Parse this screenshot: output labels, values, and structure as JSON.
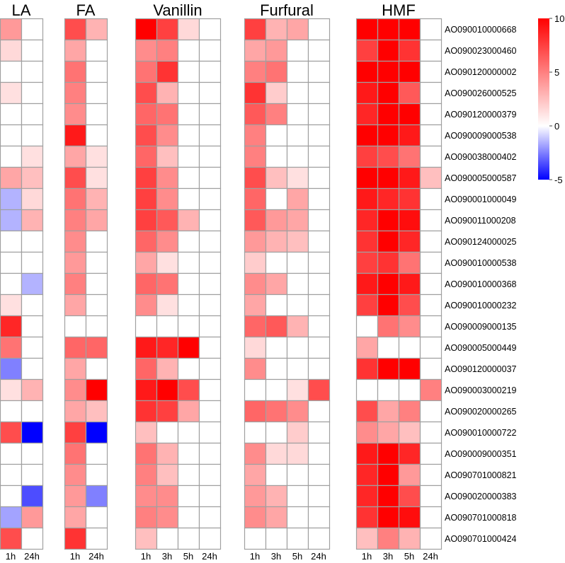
{
  "chart_data": {
    "type": "heatmap",
    "title": "",
    "color_scale": {
      "min": -5,
      "mid": 0,
      "max": 10,
      "low_color": "#0000FF",
      "mid_color": "#FFFFFF",
      "high_color": "#FF0000",
      "ticks": [
        "10",
        "5",
        "0",
        "-5"
      ]
    },
    "groups": [
      {
        "name": "LA",
        "columns": [
          "1h",
          "24h"
        ]
      },
      {
        "name": "FA",
        "columns": [
          "1h",
          "24h"
        ]
      },
      {
        "name": "Vanillin",
        "columns": [
          "1h",
          "3h",
          "5h",
          "24h"
        ]
      },
      {
        "name": "Furfural",
        "columns": [
          "1h",
          "3h",
          "5h",
          "24h"
        ]
      },
      {
        "name": "HMF",
        "columns": [
          "1h",
          "3h",
          "5h",
          "24h"
        ]
      }
    ],
    "rows": [
      {
        "label": "AO090010000668",
        "values": [
          4,
          0,
          7,
          3,
          10,
          7.5,
          1.5,
          0,
          7.5,
          3,
          3.5,
          0,
          10,
          10,
          10,
          0
        ]
      },
      {
        "label": "AO090023000460",
        "values": [
          1.5,
          0,
          3.5,
          0,
          4.5,
          5,
          0,
          0,
          3.5,
          4,
          0,
          0,
          7.5,
          10,
          8,
          0
        ]
      },
      {
        "label": "AO090120000002",
        "values": [
          0,
          0,
          5.5,
          0,
          5.5,
          8,
          0,
          0,
          5,
          5.5,
          0,
          0,
          10,
          10,
          10,
          0
        ]
      },
      {
        "label": "AO090026000525",
        "values": [
          1.2,
          0,
          5,
          0,
          7,
          3,
          0,
          0,
          8,
          2,
          0,
          0,
          9,
          10,
          6.5,
          0
        ]
      },
      {
        "label": "AO090120000379",
        "values": [
          0,
          0,
          4.5,
          0,
          6,
          5.5,
          0,
          0,
          6.5,
          5,
          0,
          0,
          8.5,
          10,
          10,
          0
        ]
      },
      {
        "label": "AO090009000538",
        "values": [
          0,
          0,
          9,
          0,
          7,
          4.5,
          0,
          0,
          5,
          0,
          0,
          0,
          10,
          10,
          9,
          0
        ]
      },
      {
        "label": "AO090038000402",
        "values": [
          0,
          1.2,
          3.5,
          1.2,
          6,
          2.5,
          0,
          0,
          5,
          0,
          0,
          0,
          7.5,
          7,
          5.5,
          0
        ]
      },
      {
        "label": "AO090005000587",
        "values": [
          3.5,
          2.5,
          7,
          1.2,
          7.5,
          4.5,
          0,
          0,
          7,
          2.5,
          1.2,
          0,
          10,
          10,
          9,
          2.5
        ]
      },
      {
        "label": "AO090001000049",
        "values": [
          -1.5,
          1.5,
          5.5,
          3,
          7.5,
          4.5,
          0,
          0,
          6,
          0,
          3.5,
          0,
          9,
          8.5,
          8,
          0
        ]
      },
      {
        "label": "AO090011000208",
        "values": [
          -1.5,
          3,
          5,
          3.5,
          7.5,
          6.5,
          3,
          0,
          6.5,
          4,
          3.5,
          0,
          8.5,
          10,
          9.5,
          0
        ]
      },
      {
        "label": "AO090124000025",
        "values": [
          0,
          0,
          4.5,
          0,
          6,
          4.5,
          0,
          0,
          4,
          3,
          2.5,
          0,
          8,
          10,
          8.5,
          0
        ]
      },
      {
        "label": "AO090010000538",
        "values": [
          0,
          0,
          4,
          0,
          3.5,
          1.2,
          0,
          0,
          2,
          0,
          0,
          0,
          7.5,
          8,
          5.5,
          0
        ]
      },
      {
        "label": "AO090010000368",
        "values": [
          0,
          -1.5,
          5,
          0,
          6,
          5.5,
          0,
          0,
          4.5,
          3.5,
          0,
          0,
          9,
          10,
          9,
          0
        ]
      },
      {
        "label": "AO090010000232",
        "values": [
          1.2,
          0,
          3.5,
          0,
          4.5,
          1.2,
          0,
          0,
          3.5,
          0,
          0,
          0,
          7.5,
          10,
          7,
          0
        ]
      },
      {
        "label": "AO090009000135",
        "values": [
          8.5,
          0,
          0,
          0,
          0,
          0,
          0,
          0,
          6,
          6.5,
          3,
          0,
          0,
          5.5,
          4.5,
          0
        ]
      },
      {
        "label": "AO090005000449",
        "values": [
          5.5,
          0,
          6,
          6,
          9,
          8.5,
          10,
          0,
          1.5,
          0,
          0,
          0,
          3.5,
          0,
          0,
          0
        ]
      },
      {
        "label": "AO090120000037",
        "values": [
          -2.5,
          0,
          3.5,
          0,
          6,
          3,
          0,
          0,
          4.5,
          0,
          0,
          0,
          8,
          10,
          10,
          0
        ]
      },
      {
        "label": "AO090003000219",
        "values": [
          1.2,
          3,
          4.5,
          10,
          9,
          10,
          7,
          0,
          0,
          0,
          1.2,
          7,
          0,
          0,
          0,
          5
        ]
      },
      {
        "label": "AO090020000265",
        "values": [
          0,
          0,
          3.5,
          2.5,
          8,
          7.5,
          3.5,
          0,
          6,
          5.5,
          4.5,
          0,
          7,
          3.5,
          5,
          0
        ]
      },
      {
        "label": "AO090010000722",
        "values": [
          7,
          -5,
          7.5,
          -5,
          2.5,
          0,
          0,
          0,
          0,
          0,
          2,
          0,
          4.5,
          3.5,
          2.5,
          0
        ]
      },
      {
        "label": "AO090009000351",
        "values": [
          0,
          0,
          5.5,
          0,
          5.5,
          3,
          0,
          0,
          4.5,
          1.5,
          1.5,
          0,
          9,
          10,
          8.5,
          0
        ]
      },
      {
        "label": "AO090701000821",
        "values": [
          0,
          0,
          4.5,
          0,
          5,
          2.5,
          0,
          0,
          3.5,
          0,
          0,
          0,
          8.5,
          10,
          4,
          0
        ]
      },
      {
        "label": "AO090020000383",
        "values": [
          0,
          -3.5,
          4,
          -2.5,
          4.5,
          4.5,
          0,
          0,
          4,
          3,
          0,
          0,
          8.5,
          10,
          7,
          0
        ]
      },
      {
        "label": "AO090701000818",
        "values": [
          -1.8,
          4,
          3.5,
          0,
          5,
          4.5,
          0,
          0,
          4.5,
          3.5,
          0,
          0,
          8,
          10,
          9.5,
          0
        ]
      },
      {
        "label": "AO090701000424",
        "values": [
          7,
          0,
          8,
          0,
          2.5,
          0,
          0,
          0,
          0,
          0,
          0,
          0,
          2.5,
          5,
          3,
          0
        ]
      }
    ]
  }
}
